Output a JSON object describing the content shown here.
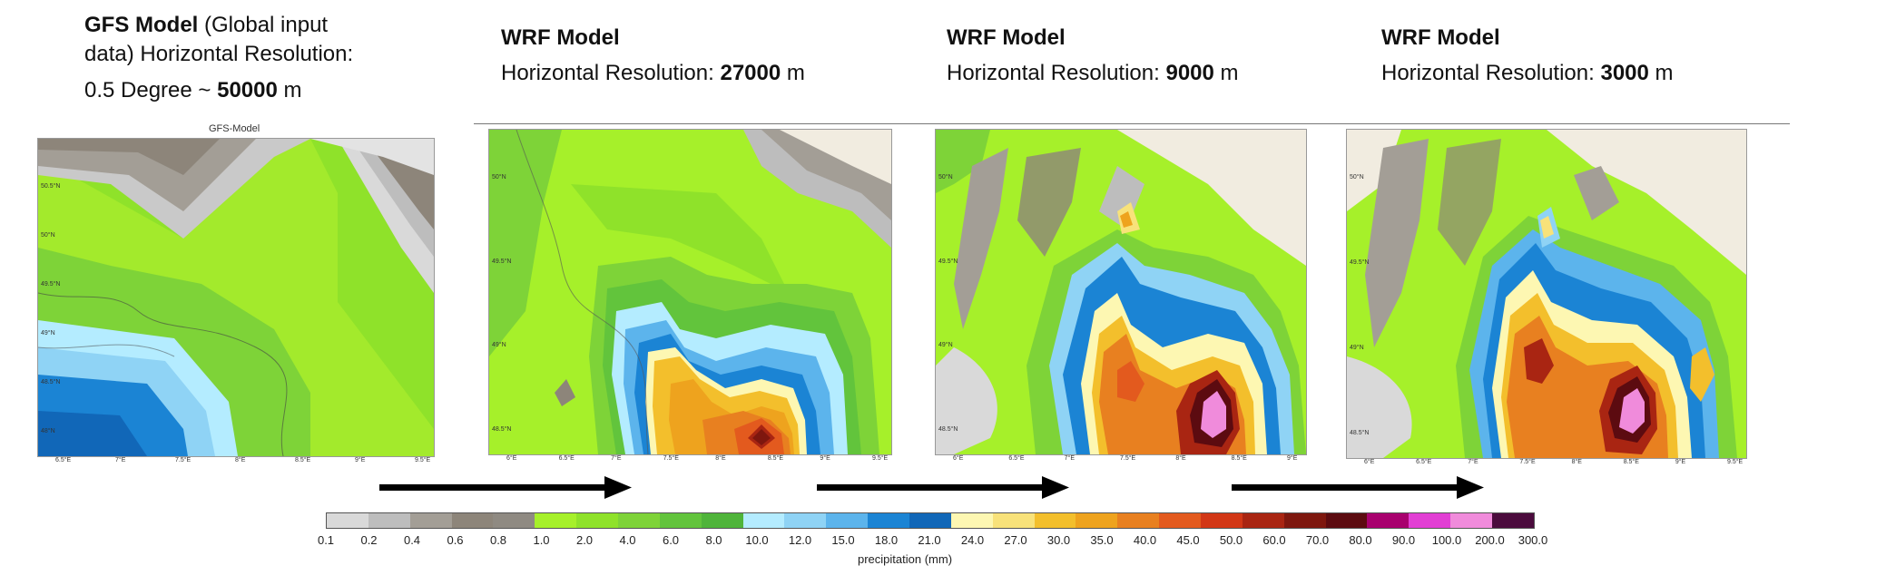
{
  "headers": {
    "gfs": {
      "title": "GFS Model",
      "paren": "(Global input",
      "line2": "data) Horizontal Resolution:",
      "line3_prefix": "0.5 Degree ~",
      "line3_value": "50000",
      "line3_unit": "m"
    },
    "wrf1": {
      "title": "WRF Model",
      "prefix": "Horizontal Resolution:",
      "value": "27000",
      "unit": "m"
    },
    "wrf2": {
      "title": "WRF Model",
      "prefix": "Horizontal Resolution:",
      "value": "9000",
      "unit": "m"
    },
    "wrf3": {
      "title": "WRF Model",
      "prefix": "Horizontal Resolution:",
      "value": "3000",
      "unit": "m"
    }
  },
  "panels": {
    "gfs": {
      "title": "GFS-Model",
      "y_ticks": [
        "50.5°N",
        "50°N",
        "49.5°N",
        "49°N",
        "48.5°N",
        "48°N"
      ],
      "x_ticks": [
        "6.5°E",
        "7°E",
        "7.5°E",
        "8°E",
        "8.5°E",
        "9°E",
        "9.5°E"
      ]
    },
    "wrf1": {
      "y_ticks": [
        "50°N",
        "49.5°N",
        "49°N",
        "48.5°N"
      ],
      "x_ticks": [
        "6°E",
        "6.5°E",
        "7°E",
        "7.5°E",
        "8°E",
        "8.5°E",
        "9°E",
        "9.5°E"
      ]
    },
    "wrf2": {
      "y_ticks": [
        "50°N",
        "49.5°N",
        "49°N",
        "48.5°N"
      ],
      "x_ticks": [
        "6°E",
        "6.5°E",
        "7°E",
        "7.5°E",
        "8°E",
        "8.5°E",
        "9°E"
      ]
    },
    "wrf3": {
      "y_ticks": [
        "50°N",
        "49.5°N",
        "49°N",
        "48.5°N"
      ],
      "x_ticks": [
        "6°E",
        "6.5°E",
        "7°E",
        "7.5°E",
        "8°E",
        "8.5°E",
        "9°E",
        "9.5°E"
      ]
    }
  },
  "colorbar": {
    "label": "precipitation (mm)",
    "ticks": [
      "0.1",
      "0.2",
      "0.4",
      "0.6",
      "0.8",
      "1.0",
      "2.0",
      "4.0",
      "6.0",
      "8.0",
      "10.0",
      "12.0",
      "15.0",
      "18.0",
      "21.0",
      "24.0",
      "27.0",
      "30.0",
      "35.0",
      "40.0",
      "45.0",
      "50.0",
      "60.0",
      "70.0",
      "80.0",
      "90.0",
      "100.0",
      "200.0",
      "300.0"
    ],
    "colors": [
      "#d9d9d9",
      "#bdbdbd",
      "#a39e96",
      "#8d857a",
      "#8f8a82",
      "#a6f02a",
      "#8fe22a",
      "#7ed338",
      "#62c43c",
      "#4fb43a",
      "#b4ecff",
      "#8fd3f5",
      "#5cb4ec",
      "#1b84d4",
      "#1167b8",
      "#fdf7b2",
      "#f8e27a",
      "#f3bf2c",
      "#eea31e",
      "#e88020",
      "#e35a1e",
      "#d23716",
      "#a92512",
      "#7e170e",
      "#5c0b10",
      "#a8006e",
      "#e23fd4",
      "#f08bdb",
      "#4b0b3d"
    ]
  }
}
